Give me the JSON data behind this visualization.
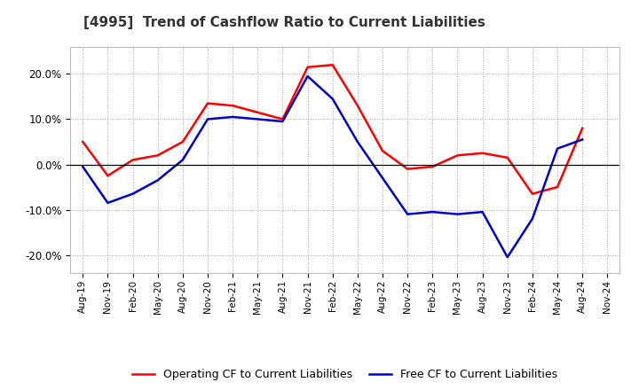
{
  "title": "[4995]  Trend of Cashflow Ratio to Current Liabilities",
  "x_labels": [
    "Aug-19",
    "Nov-19",
    "Feb-20",
    "May-20",
    "Aug-20",
    "Nov-20",
    "Feb-21",
    "May-21",
    "Aug-21",
    "Nov-21",
    "Feb-22",
    "May-22",
    "Aug-22",
    "Nov-22",
    "Feb-23",
    "May-23",
    "Aug-23",
    "Nov-23",
    "Feb-24",
    "May-24",
    "Aug-24",
    "Nov-24"
  ],
  "operating_cf": [
    5.0,
    -2.5,
    1.0,
    2.0,
    5.0,
    13.5,
    13.0,
    11.5,
    10.0,
    21.5,
    22.0,
    13.0,
    3.0,
    -1.0,
    -0.5,
    2.0,
    2.5,
    1.5,
    -6.5,
    -5.0,
    8.0,
    null
  ],
  "free_cf": [
    -0.5,
    -8.5,
    -6.5,
    -3.5,
    1.0,
    10.0,
    10.5,
    10.0,
    9.5,
    19.5,
    14.5,
    5.0,
    -3.0,
    -11.0,
    -10.5,
    -11.0,
    -10.5,
    -20.5,
    -12.0,
    3.5,
    5.5,
    null
  ],
  "ylim": [
    -24.0,
    26.0
  ],
  "yticks": [
    -20.0,
    -10.0,
    0.0,
    10.0,
    20.0
  ],
  "operating_color": "#ff0000",
  "free_color": "#0000cc",
  "background_color": "#ffffff",
  "plot_bg_color": "#ffffff",
  "grid_color": "#aaaaaa",
  "legend_labels": [
    "Operating CF to Current Liabilities",
    "Free CF to Current Liabilities"
  ]
}
